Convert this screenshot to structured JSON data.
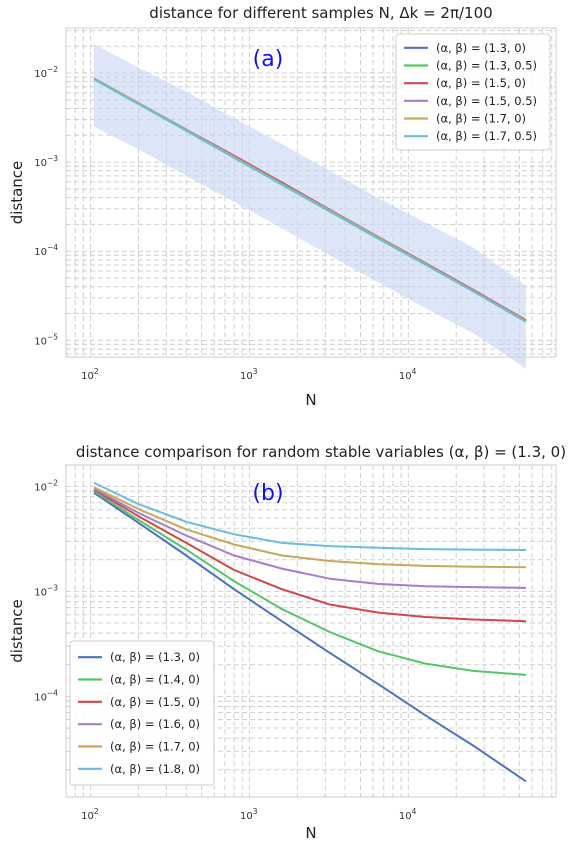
{
  "chart_data": [
    {
      "type": "line",
      "panel_tag": "(a)",
      "title": "distance for different samples N, Δk = 2π/100",
      "xlabel": "N",
      "ylabel": "distance",
      "xscale": "log",
      "yscale": "log",
      "xlim": [
        70,
        85000
      ],
      "ylim": [
        6.5e-06,
        0.032
      ],
      "grid": true,
      "legend_position": "top-right",
      "xticklabels": [
        "10^2",
        "10^3",
        "10^4"
      ],
      "yticklabels": [
        "10^-5",
        "10^-4",
        "10^-3",
        "10^-2"
      ],
      "x": [
        105,
        200,
        400,
        800,
        1600,
        3200,
        6400,
        12800,
        25600,
        55000
      ],
      "band": {
        "color": "#c5d5f2",
        "lower": [
          0.0025,
          0.0014,
          0.0007,
          0.00036,
          0.00018,
          9e-05,
          4.5e-05,
          2.3e-05,
          1.2e-05,
          4.8e-06
        ],
        "upper": [
          0.021,
          0.0115,
          0.0062,
          0.0031,
          0.0016,
          0.0008,
          0.0004,
          0.00021,
          0.00011,
          4.1e-05
        ]
      },
      "series": [
        {
          "name": "(α, β) = (1.3, 0)",
          "color": "#4c72c0",
          "values": [
            0.0086,
            0.0046,
            0.0023,
            0.00113,
            0.00057,
            0.000285,
            0.000143,
            7.15e-05,
            3.58e-05,
            1.64e-05
          ]
        },
        {
          "name": "(α, β) = (1.3, 0.5)",
          "color": "#55c667",
          "values": [
            0.0085,
            0.0045,
            0.00225,
            0.00112,
            0.00056,
            0.00028,
            0.00014,
            7.1e-05,
            3.55e-05,
            1.62e-05
          ]
        },
        {
          "name": "(α, β) = (1.5, 0)",
          "color": "#d0494a",
          "values": [
            0.0087,
            0.0046,
            0.00232,
            0.00118,
            0.00059,
            0.000292,
            0.000146,
            7.35e-05,
            3.68e-05,
            1.68e-05
          ]
        },
        {
          "name": "(α, β) = (1.5, 0.5)",
          "color": "#a97cc9",
          "values": [
            0.0086,
            0.00455,
            0.0023,
            0.00115,
            0.00057,
            0.000286,
            0.000143,
            7.18e-05,
            3.59e-05,
            1.64e-05
          ]
        },
        {
          "name": "(α, β) = (1.7, 0)",
          "color": "#c9a75c",
          "values": [
            0.0087,
            0.0046,
            0.0023,
            0.00114,
            0.00057,
            0.000287,
            0.000144,
            7.2e-05,
            3.6e-05,
            1.65e-05
          ]
        },
        {
          "name": "(α, β) = (1.7, 0.5)",
          "color": "#6cbcdc",
          "values": [
            0.0085,
            0.0045,
            0.00227,
            0.00112,
            0.000565,
            0.000283,
            0.000141,
            7.1e-05,
            3.55e-05,
            1.62e-05
          ]
        }
      ]
    },
    {
      "type": "line",
      "panel_tag": "(b)",
      "title": "distance comparison for random stable variables (α, β) = (1.3, 0)",
      "xlabel": "N",
      "ylabel": "distance",
      "xscale": "log",
      "yscale": "log",
      "xlim": [
        70,
        85000
      ],
      "ylim": [
        1.1e-05,
        0.016
      ],
      "grid": true,
      "legend_position": "bottom-left",
      "xticklabels": [
        "10^2",
        "10^3",
        "10^4"
      ],
      "yticklabels": [
        "10^-4",
        "10^-3",
        "10^-2"
      ],
      "x": [
        105,
        200,
        400,
        800,
        1600,
        3200,
        6400,
        12800,
        25600,
        55000
      ],
      "series": [
        {
          "name": "(α, β) = (1.3, 0)",
          "color": "#4c72c0",
          "values": [
            0.0087,
            0.0045,
            0.0022,
            0.00105,
            0.00052,
            0.00026,
            0.000132,
            6.6e-05,
            3.4e-05,
            1.55e-05
          ]
        },
        {
          "name": "(α, β) = (1.4, 0)",
          "color": "#55c667",
          "values": [
            0.009,
            0.0048,
            0.0025,
            0.00125,
            0.00068,
            0.00041,
            0.00027,
            0.000205,
            0.000175,
            0.00016
          ]
        },
        {
          "name": "(α, β) = (1.5, 0)",
          "color": "#d0494a",
          "values": [
            0.0093,
            0.0052,
            0.0029,
            0.0016,
            0.00105,
            0.00075,
            0.00063,
            0.00057,
            0.00054,
            0.00052
          ]
        },
        {
          "name": "(α, β) = (1.6, 0)",
          "color": "#a97cc9",
          "values": [
            0.0095,
            0.0056,
            0.0034,
            0.0022,
            0.00165,
            0.00132,
            0.00118,
            0.00112,
            0.0011,
            0.00108
          ]
        },
        {
          "name": "(α, β) = (1.7, 0)",
          "color": "#c9a75c",
          "values": [
            0.0098,
            0.0061,
            0.0039,
            0.0028,
            0.0022,
            0.00195,
            0.00182,
            0.00175,
            0.00172,
            0.0017
          ]
        },
        {
          "name": "(α, β) = (1.8, 0)",
          "color": "#6cbcdc",
          "values": [
            0.0108,
            0.0068,
            0.0046,
            0.0035,
            0.0029,
            0.0027,
            0.0026,
            0.00253,
            0.0025,
            0.00248
          ]
        }
      ]
    }
  ]
}
